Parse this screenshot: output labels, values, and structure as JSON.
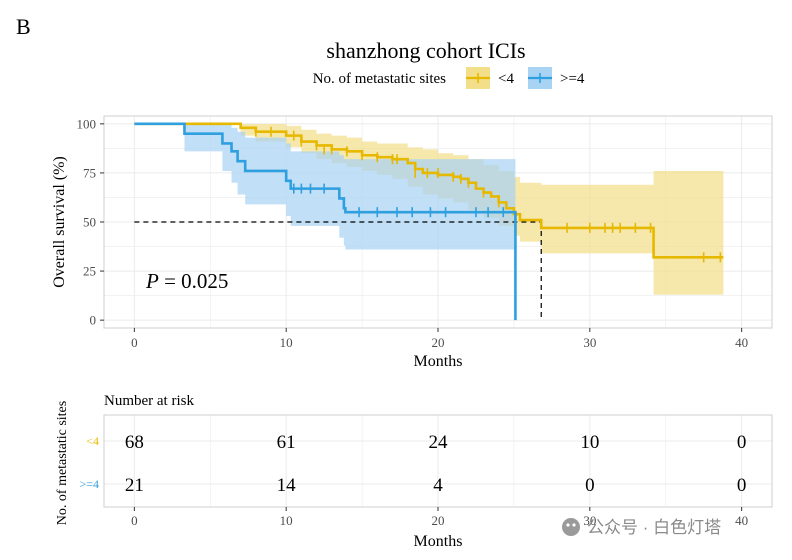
{
  "panel_label": "B",
  "colors": {
    "lt4": "#E7B800",
    "lt4_band": "#F3DE8A",
    "ge4": "#2E9FDF",
    "ge4_band": "#A9D3F2",
    "panel_border": "#cfcfcf",
    "grid": "#ebebeb"
  },
  "watermark": "公众号 · 白色灯塔",
  "chart_data": [
    {
      "type": "line",
      "subtype": "kaplan-meier",
      "title": "shanzhong cohort  ICIs",
      "legend_title": "No. of metastatic sites",
      "legend_position": "top",
      "xlabel": "Months",
      "ylabel": "Overall survival (%)",
      "xlim": [
        -2,
        42
      ],
      "ylim": [
        -4,
        104
      ],
      "xticks": [
        0,
        10,
        20,
        30,
        40
      ],
      "yticks": [
        0,
        25,
        50,
        75,
        100
      ],
      "grid": true,
      "pvalue_text": "P",
      "pvalue_value": " = 0.025",
      "median_line": {
        "y": 50,
        "medians": [
          {
            "series": "<4",
            "x": 26.8
          },
          {
            "series": ">=4",
            "x": 25.1
          }
        ]
      },
      "series": [
        {
          "name": "<4",
          "color_key": "lt4",
          "steps": [
            [
              0,
              100
            ],
            [
              7,
              98
            ],
            [
              8,
              96
            ],
            [
              10,
              94
            ],
            [
              11,
              91
            ],
            [
              12,
              89
            ],
            [
              13,
              87
            ],
            [
              14,
              86
            ],
            [
              15,
              84
            ],
            [
              16,
              83
            ],
            [
              17,
              82
            ],
            [
              18,
              80
            ],
            [
              18.5,
              77
            ],
            [
              19,
              75
            ],
            [
              20,
              74
            ],
            [
              21,
              73
            ],
            [
              21.5,
              72
            ],
            [
              22,
              70
            ],
            [
              22.5,
              67
            ],
            [
              23,
              65
            ],
            [
              23.5,
              63
            ],
            [
              24,
              60
            ],
            [
              24.5,
              57
            ],
            [
              25,
              54
            ],
            [
              25.4,
              51
            ],
            [
              26.8,
              47
            ],
            [
              34.2,
              32
            ],
            [
              38.8,
              32
            ]
          ],
          "ci": [
            [
              0,
              100,
              100
            ],
            [
              7,
              100,
              94
            ],
            [
              8,
              100,
              91
            ],
            [
              10,
              99,
              88
            ],
            [
              11,
              97,
              85
            ],
            [
              12,
              95,
              82
            ],
            [
              13,
              94,
              80
            ],
            [
              14,
              93,
              78
            ],
            [
              15,
              91,
              76
            ],
            [
              16,
              90,
              74
            ],
            [
              17,
              90,
              72
            ],
            [
              18,
              88,
              68
            ],
            [
              19,
              87,
              64
            ],
            [
              20,
              85,
              62
            ],
            [
              21,
              84,
              60
            ],
            [
              22,
              82,
              56
            ],
            [
              23,
              79,
              52
            ],
            [
              24,
              76,
              48
            ],
            [
              25,
              73,
              43
            ],
            [
              25.4,
              70,
              40
            ],
            [
              26.8,
              69,
              34
            ],
            [
              34.2,
              76,
              13
            ],
            [
              38.8,
              76,
              13
            ]
          ],
          "censored": [
            [
              8,
              96
            ],
            [
              9,
              96
            ],
            [
              10.5,
              94
            ],
            [
              11,
              91
            ],
            [
              12,
              89
            ],
            [
              12.5,
              87
            ],
            [
              13,
              87
            ],
            [
              14,
              86
            ],
            [
              15,
              84
            ],
            [
              16,
              83
            ],
            [
              17,
              82
            ],
            [
              17.3,
              82
            ],
            [
              18.5,
              75
            ],
            [
              19.3,
              75
            ],
            [
              20,
              75
            ],
            [
              21,
              73
            ],
            [
              21.5,
              72
            ],
            [
              22,
              70
            ],
            [
              23,
              65
            ],
            [
              24,
              60
            ],
            [
              28.5,
              47
            ],
            [
              30,
              47
            ],
            [
              31,
              47
            ],
            [
              31.5,
              47
            ],
            [
              32,
              47
            ],
            [
              33,
              47
            ],
            [
              34,
              47
            ],
            [
              37.5,
              32
            ],
            [
              38.6,
              32
            ]
          ]
        },
        {
          "name": ">=4",
          "color_key": "ge4",
          "steps": [
            [
              0,
              100
            ],
            [
              3.3,
              95
            ],
            [
              5.8,
              90
            ],
            [
              6.4,
              86
            ],
            [
              6.8,
              81
            ],
            [
              7.3,
              76
            ],
            [
              10,
              71
            ],
            [
              10.3,
              67
            ],
            [
              13.5,
              62
            ],
            [
              13.8,
              57
            ],
            [
              13.9,
              55
            ],
            [
              20.8,
              55
            ],
            [
              21.5,
              55
            ],
            [
              25.1,
              0
            ]
          ],
          "ci": [
            [
              0,
              100,
              100
            ],
            [
              3.3,
              100,
              86
            ],
            [
              5.8,
              100,
              76
            ],
            [
              6.4,
              98,
              70
            ],
            [
              6.8,
              96,
              64
            ],
            [
              7.3,
              93,
              59
            ],
            [
              10,
              90,
              53
            ],
            [
              10.3,
              86,
              48
            ],
            [
              13.5,
              84,
              42
            ],
            [
              13.8,
              82,
              38
            ],
            [
              13.9,
              82,
              36
            ],
            [
              25.1,
              82,
              36
            ]
          ],
          "censored": [
            [
              10.5,
              67
            ],
            [
              11,
              67
            ],
            [
              11.6,
              67
            ],
            [
              12.5,
              67
            ],
            [
              14.8,
              55
            ],
            [
              16,
              55
            ],
            [
              17.3,
              55
            ],
            [
              18.3,
              55
            ],
            [
              19.5,
              55
            ],
            [
              20.5,
              55
            ],
            [
              22.5,
              55
            ],
            [
              23.3,
              55
            ],
            [
              24.3,
              55
            ]
          ]
        }
      ]
    },
    {
      "type": "table",
      "title": "Number at risk",
      "ylabel": "No. of metastatic sites",
      "xlabel": "Months",
      "xticks": [
        0,
        10,
        20,
        30,
        40
      ],
      "rows": [
        {
          "label": "<4",
          "color_key": "lt4",
          "values": [
            "68",
            "61",
            "24",
            "10",
            "0"
          ]
        },
        {
          "label": ">=4",
          "color_key": "ge4",
          "values": [
            "21",
            "14",
            "4",
            "0",
            "0"
          ]
        }
      ]
    }
  ]
}
